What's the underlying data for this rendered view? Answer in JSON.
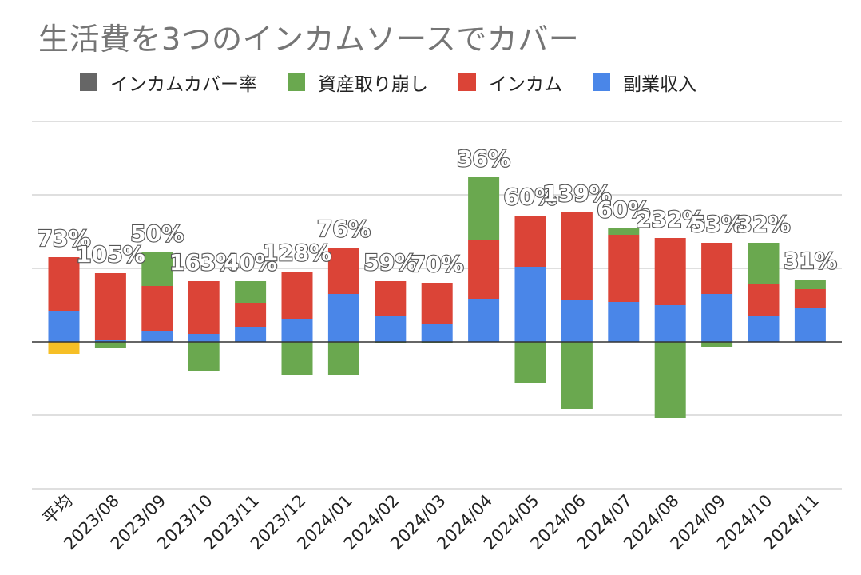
{
  "chart_data": {
    "type": "bar",
    "stacked": true,
    "title": "生活費を3つのインカムソースでカバー",
    "legend_position": "top-left",
    "grid": true,
    "series": [
      {
        "name": "インカムカバー率",
        "color": "#666666",
        "values": [
          0,
          0,
          0,
          0,
          0,
          0,
          0,
          0,
          0,
          0,
          0,
          0,
          0,
          0,
          0,
          0,
          0
        ]
      },
      {
        "name": "資産取り崩し",
        "color": "#6aa84f",
        "values": [
          0,
          -8,
          42,
          -36,
          28,
          -41,
          -41,
          -2,
          -2,
          78,
          -52,
          -84,
          8,
          -96,
          -6,
          52,
          12
        ]
      },
      {
        "name": "インカム",
        "color": "#db4437",
        "values": [
          68,
          84,
          56,
          66,
          30,
          60,
          58,
          44,
          52,
          74,
          64,
          110,
          84,
          84,
          64,
          40,
          24
        ]
      },
      {
        "name": "副業収入",
        "color": "#4a86e8",
        "values": [
          38,
          2,
          14,
          10,
          18,
          28,
          60,
          32,
          22,
          54,
          94,
          52,
          50,
          46,
          60,
          32,
          42
        ]
      }
    ],
    "average_extra": {
      "label": "平均",
      "value": -15,
      "color": "#f6bf26"
    },
    "categories": [
      "平均",
      "2023/08",
      "2023/09",
      "2023/10",
      "2023/11",
      "2023/12",
      "2024/01",
      "2024/02",
      "2024/03",
      "2024/04",
      "2024/05",
      "2024/06",
      "2024/07",
      "2024/08",
      "2024/09",
      "2024/10",
      "2024/11"
    ],
    "data_labels": [
      "73%",
      "105%",
      "50%",
      "163%",
      "40%",
      "128%",
      "76%",
      "59%",
      "70%",
      "36%",
      "60%",
      "139%",
      "60%",
      "232%",
      "53%",
      "32%",
      "31%"
    ],
    "ylim": [
      -184,
      276
    ]
  }
}
